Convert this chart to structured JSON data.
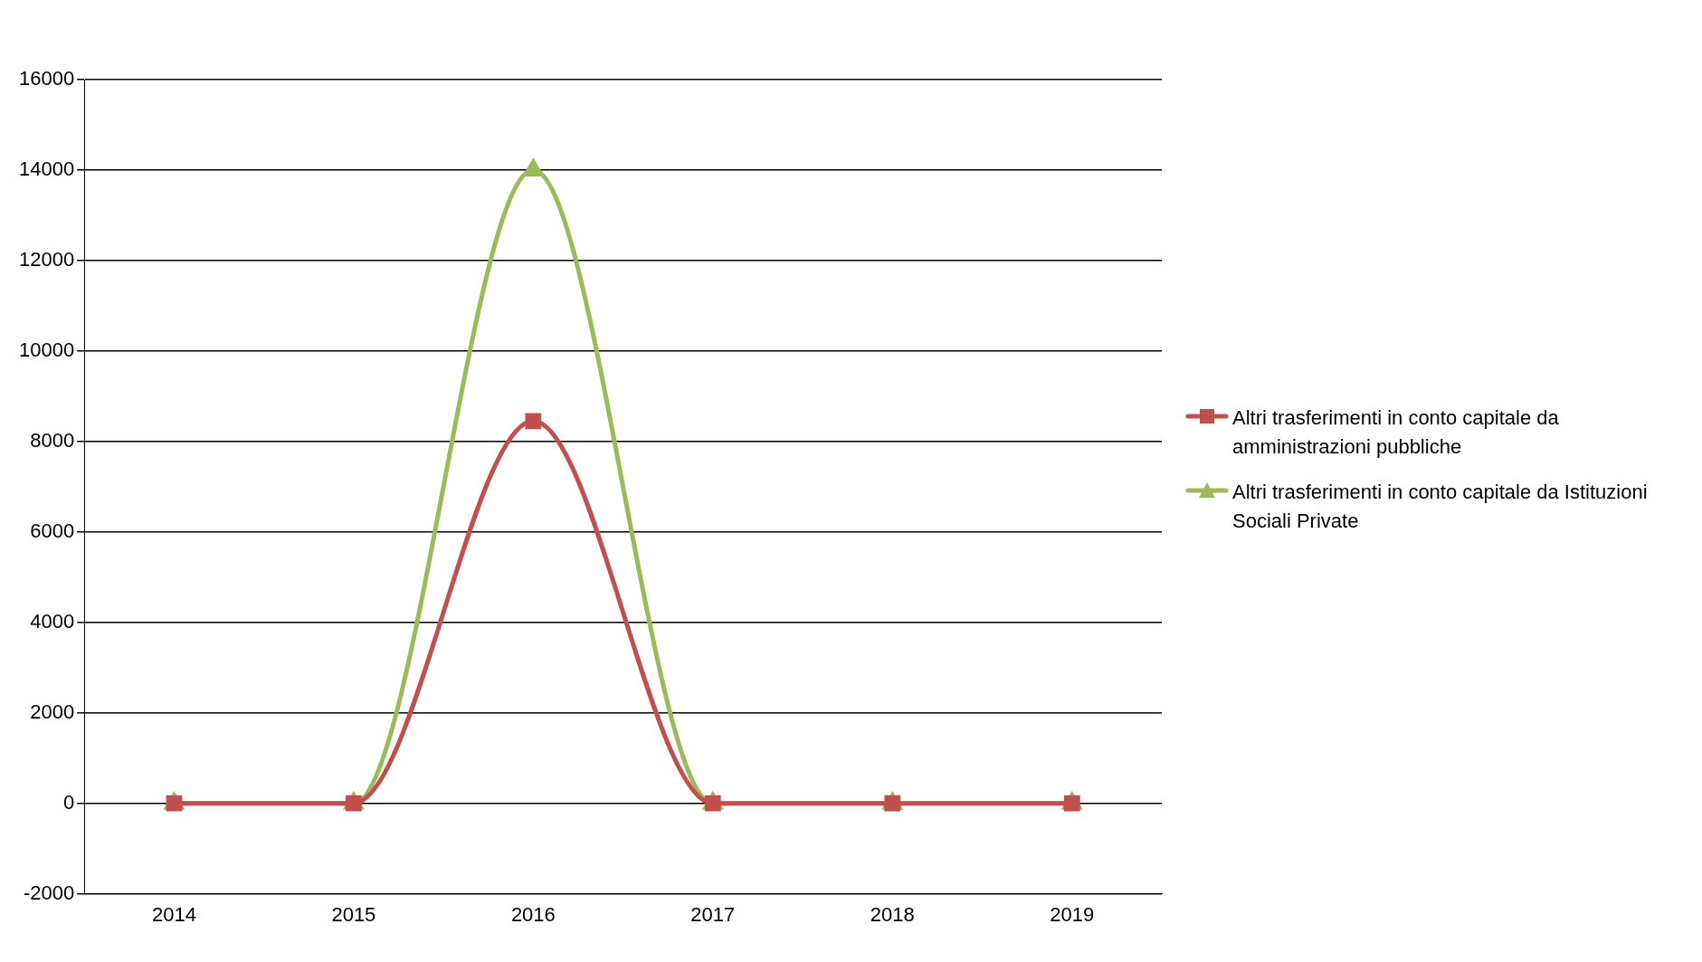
{
  "chart_data": {
    "type": "line",
    "categories": [
      "2014",
      "2015",
      "2016",
      "2017",
      "2018",
      "2019"
    ],
    "series": [
      {
        "name": "Altri trasferimenti in conto capitale da amministrazioni pubbliche",
        "color": "#c0504d",
        "marker": "square",
        "values": [
          0,
          0,
          8450,
          0,
          0,
          0
        ]
      },
      {
        "name": "Altri trasferimenti in conto capitale da Istituzioni Sociali Private",
        "color": "#9bbb59",
        "marker": "triangle",
        "values": [
          0,
          0,
          14000,
          0,
          0,
          0
        ]
      }
    ],
    "ylim": [
      -2000,
      16000
    ],
    "yticks": [
      -2000,
      0,
      2000,
      4000,
      6000,
      8000,
      10000,
      12000,
      14000,
      16000
    ],
    "grid": "y",
    "legend": "right"
  }
}
